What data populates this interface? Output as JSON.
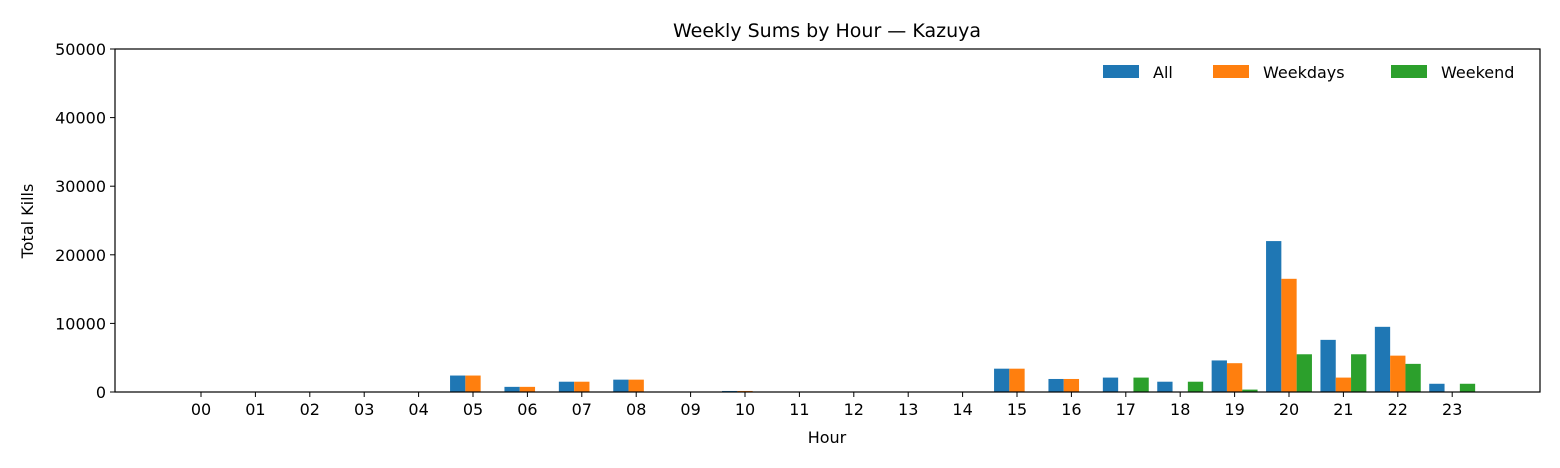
{
  "chart_data": {
    "type": "bar",
    "title": "Weekly Sums by Hour — Kazuya",
    "xlabel": "Hour",
    "ylabel": "Total Kills",
    "ylim": [
      0,
      50000
    ],
    "yticks": [
      0,
      10000,
      20000,
      30000,
      40000,
      50000
    ],
    "grid": false,
    "legend_position": "top-right",
    "categories": [
      "00",
      "01",
      "02",
      "03",
      "04",
      "05",
      "06",
      "07",
      "08",
      "09",
      "10",
      "11",
      "12",
      "13",
      "14",
      "15",
      "16",
      "17",
      "18",
      "19",
      "20",
      "21",
      "22",
      "23"
    ],
    "series": [
      {
        "name": "All",
        "color": "#1f77b4",
        "values": [
          0,
          0,
          0,
          0,
          0,
          2400,
          750,
          1500,
          1800,
          0,
          150,
          0,
          0,
          0,
          0,
          3400,
          1900,
          2100,
          1500,
          4600,
          22000,
          7600,
          9500,
          1200
        ]
      },
      {
        "name": "Weekdays",
        "color": "#ff7f0e",
        "values": [
          0,
          0,
          0,
          0,
          0,
          2400,
          750,
          1500,
          1800,
          0,
          150,
          0,
          0,
          0,
          0,
          3400,
          1900,
          0,
          0,
          4200,
          16500,
          2100,
          5300,
          0
        ]
      },
      {
        "name": "Weekend",
        "color": "#2ca02c",
        "values": [
          0,
          0,
          0,
          0,
          0,
          0,
          0,
          0,
          0,
          0,
          0,
          0,
          0,
          0,
          0,
          0,
          0,
          2100,
          1500,
          350,
          5500,
          5500,
          4100,
          1200
        ]
      }
    ]
  }
}
